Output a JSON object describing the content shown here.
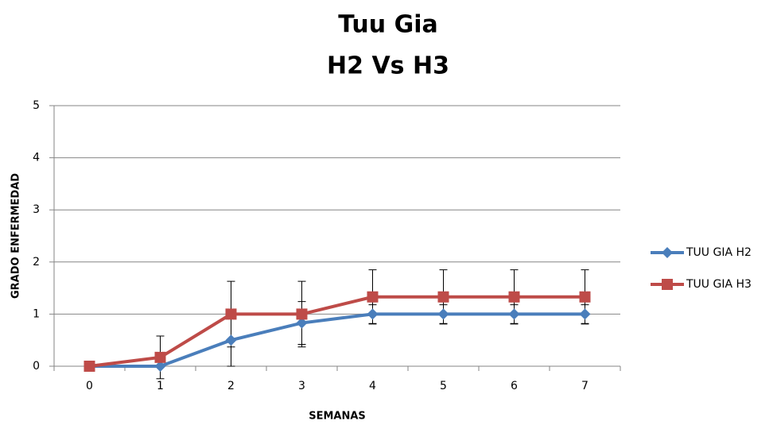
{
  "chart_data": {
    "type": "line",
    "title": [
      "Tuu Gia",
      "H2 Vs H3"
    ],
    "xlabel": "SEMANAS",
    "ylabel": "GRADO ENFERMEDAD",
    "categories": [
      "0",
      "1",
      "2",
      "3",
      "4",
      "5",
      "6",
      "7"
    ],
    "series": [
      {
        "name": "TUU GIA H2",
        "color": "#4a7ebb",
        "marker": "diamond",
        "values": [
          0,
          0,
          0.5,
          0.83,
          1,
          1,
          1,
          1
        ],
        "errors": [
          0,
          0,
          0.5,
          0.41,
          0.18,
          0.18,
          0.18,
          0.18
        ]
      },
      {
        "name": "TUU GIA H3",
        "color": "#be4b48",
        "marker": "square",
        "values": [
          0,
          0.17,
          1,
          1,
          1.33,
          1.33,
          1.33,
          1.33
        ],
        "errors": [
          0,
          0.41,
          0.63,
          0.63,
          0.52,
          0.52,
          0.52,
          0.52
        ]
      }
    ],
    "ylim": [
      0,
      5
    ],
    "yticks": [
      0,
      1,
      2,
      3,
      4,
      5
    ],
    "grid": true,
    "legend": "right"
  }
}
